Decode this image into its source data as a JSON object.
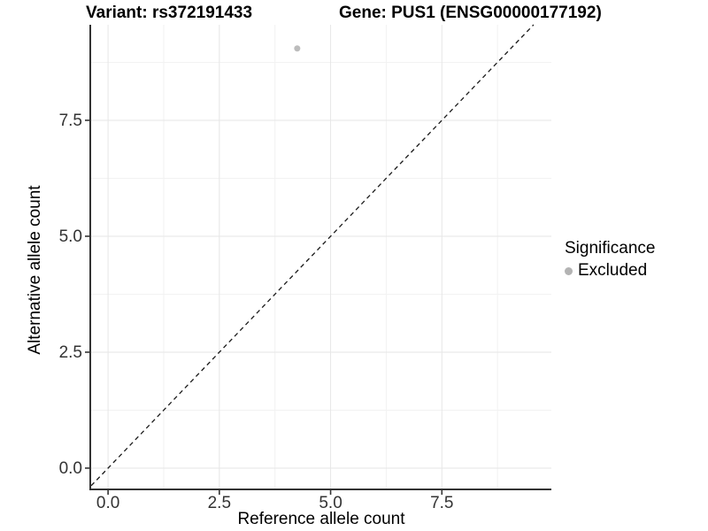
{
  "chart_data": {
    "type": "scatter",
    "title_left": "Variant: rs372191433",
    "title_right": "Gene: PUS1 (ENSG00000177192)",
    "xlabel": "Reference allele count",
    "ylabel": "Alternative allele count",
    "x_ticks": [
      0.0,
      2.5,
      5.0,
      7.5
    ],
    "y_ticks": [
      0.0,
      2.5,
      5.0,
      7.5
    ],
    "x_tick_labels": [
      "0.0",
      "2.5",
      "5.0",
      "7.5"
    ],
    "y_tick_labels": [
      "0.0",
      "2.5",
      "5.0",
      "7.5"
    ],
    "xlim": [
      -0.38,
      9.96
    ],
    "ylim": [
      -0.44,
      9.56
    ],
    "grid": "major and minor light-gray gridlines on white background",
    "series": [
      {
        "name": "Excluded",
        "points": [
          {
            "x": 4.25,
            "y": 9.05
          }
        ],
        "color": "#bcbcbc",
        "marker": "circle"
      }
    ],
    "reference_line": {
      "type": "identity y = x",
      "style": "dashed",
      "color": "#1a1a1a"
    },
    "legend": {
      "title": "Significance",
      "position": "right",
      "items": [
        {
          "label": "Excluded",
          "color": "#b3b3b3"
        }
      ]
    }
  },
  "colors": {
    "background": "#ffffff",
    "axis_line": "#333333",
    "tick_label": "#333333",
    "grid_major": "#e6e6e6",
    "grid_minor": "#f2f2f2",
    "point": "#bcbcbc",
    "dashed_line": "#1a1a1a"
  }
}
